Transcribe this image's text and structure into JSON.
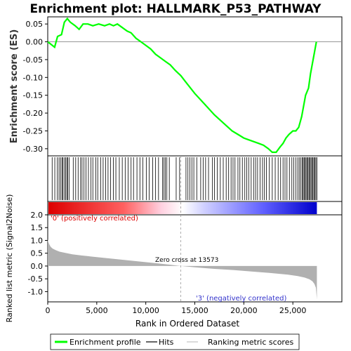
{
  "chart_data": [
    {
      "type": "line",
      "title": "Enrichment plot: HALLMARK_P53_PATHWAY",
      "ylabel": "Enrichment score (ES)",
      "ylim": [
        -0.32,
        0.07
      ],
      "yticks": [
        "0.05",
        "0.00",
        "-0.05",
        "-0.10",
        "-0.15",
        "-0.20",
        "-0.25",
        "-0.30"
      ],
      "series": [
        {
          "name": "Enrichment profile",
          "color": "#00ff00",
          "x": [
            0,
            700,
            1000,
            1400,
            1700,
            2000,
            2300,
            2800,
            3200,
            3600,
            4100,
            4600,
            5200,
            5800,
            6300,
            6700,
            7100,
            7600,
            8100,
            8500,
            9000,
            9500,
            10000,
            10500,
            11000,
            11500,
            12000,
            12500,
            13000,
            13573,
            14000,
            15000,
            16000,
            17000,
            18000,
            18800,
            19400,
            20000,
            20500,
            21000,
            21500,
            22000,
            22500,
            22900,
            23300,
            23700,
            24000,
            24300,
            24600,
            25000,
            25300,
            25600,
            25900,
            26100,
            26300,
            26600,
            26800,
            27000,
            27200,
            27400
          ],
          "y": [
            0.0,
            -0.015,
            0.015,
            0.02,
            0.055,
            0.065,
            0.055,
            0.045,
            0.035,
            0.05,
            0.05,
            0.045,
            0.05,
            0.045,
            0.05,
            0.045,
            0.05,
            0.04,
            0.03,
            0.025,
            0.01,
            0.0,
            -0.01,
            -0.02,
            -0.035,
            -0.045,
            -0.055,
            -0.065,
            -0.08,
            -0.095,
            -0.11,
            -0.145,
            -0.175,
            -0.205,
            -0.23,
            -0.25,
            -0.26,
            -0.27,
            -0.275,
            -0.28,
            -0.285,
            -0.29,
            -0.3,
            -0.31,
            -0.31,
            -0.295,
            -0.285,
            -0.27,
            -0.26,
            -0.25,
            -0.25,
            -0.24,
            -0.21,
            -0.18,
            -0.15,
            -0.13,
            -0.09,
            -0.06,
            -0.03,
            0.0
          ]
        }
      ]
    },
    {
      "type": "scatter",
      "series": [
        {
          "name": "Hits",
          "color": "#000000",
          "x": [
            450,
            720,
            980,
            1150,
            1300,
            1450,
            1550,
            1700,
            1820,
            1950,
            2050,
            2200,
            2600,
            2850,
            3100,
            3350,
            3500,
            3700,
            3900,
            4150,
            4400,
            4600,
            4900,
            5100,
            5400,
            5650,
            5900,
            6150,
            6400,
            6700,
            6950,
            7300,
            7600,
            7900,
            8200,
            8500,
            8750,
            9100,
            9400,
            9700,
            10050,
            10350,
            10700,
            11000,
            11300,
            11700,
            11850,
            12000,
            12150,
            12400,
            13100,
            13450,
            14100,
            14300,
            14500,
            14700,
            14900,
            15200,
            15600,
            15850,
            16100,
            16400,
            16800,
            17000,
            17300,
            17600,
            17900,
            18200,
            18450,
            18700,
            18900,
            19100,
            19400,
            19600,
            19850,
            20100,
            20300,
            20500,
            20750,
            21000,
            21200,
            21400,
            21650,
            21900,
            22100,
            22300,
            22600,
            22900,
            23200,
            23500,
            23750,
            24000,
            24200,
            24400,
            24650,
            24900,
            25100,
            25300,
            25500,
            25650,
            25800,
            25950,
            26050,
            26150,
            26250,
            26350,
            26450,
            26550,
            26650,
            26750,
            26850,
            26950,
            27050,
            27150,
            27250,
            27350,
            27450
          ]
        }
      ]
    },
    {
      "type": "area",
      "ylabel": "Ranked list metric (Signal2Noise)",
      "xlabel": "Rank in Ordered Dataset",
      "xlim": [
        0,
        30000
      ],
      "ylim": [
        -1.4,
        2.0
      ],
      "xticks": [
        "0",
        "5,000",
        "10,000",
        "15,000",
        "20,000",
        "25,000"
      ],
      "yticks": [
        "2.0",
        "1.5",
        "1.0",
        "0.5",
        "0.0",
        "-0.5",
        "-1.0"
      ],
      "annotations": {
        "positive": "'0' (positively correlated)",
        "negative": "'3' (negatively correlated)",
        "zero_cross": "Zero cross at 13573"
      },
      "series": [
        {
          "name": "Ranking metric scores",
          "color": "#b0b0b0",
          "x": [
            0,
            50,
            150,
            300,
            500,
            800,
            1200,
            1800,
            2500,
            3500,
            5000,
            7000,
            9000,
            11000,
            12500,
            13573,
            15000,
            17000,
            19000,
            21000,
            23000,
            24500,
            25500,
            26200,
            26700,
            27000,
            27200,
            27350,
            27450
          ],
          "y": [
            1.05,
            0.95,
            0.85,
            0.75,
            0.68,
            0.62,
            0.56,
            0.51,
            0.46,
            0.41,
            0.35,
            0.27,
            0.19,
            0.11,
            0.05,
            0.0,
            -0.05,
            -0.11,
            -0.16,
            -0.22,
            -0.28,
            -0.34,
            -0.39,
            -0.45,
            -0.52,
            -0.6,
            -0.7,
            -0.85,
            -1.3
          ]
        }
      ],
      "gradient_colors": [
        "#dd0000",
        "#ffb0b0",
        "#ffffff",
        "#b0b0ff",
        "#0000cc"
      ]
    }
  ],
  "legend": {
    "enrichment_profile": "Enrichment profile",
    "hits": "Hits",
    "ranking_metric": "Ranking metric scores"
  }
}
